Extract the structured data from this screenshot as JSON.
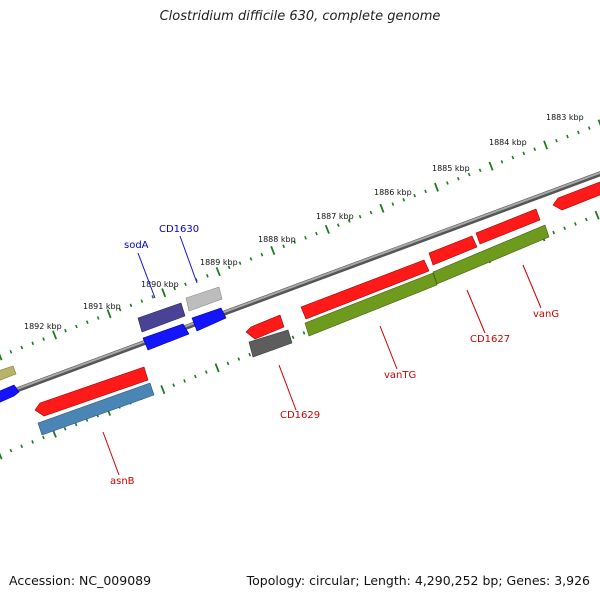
{
  "title": "Clostridium difficile 630, complete genome",
  "footer": {
    "accession": "Accession: NC_009089",
    "summary": "Topology: circular; Length: 4,290,252 bp; Genes: 3,926"
  },
  "colors": {
    "backbone": "#8c8c8c",
    "tick": "#1e7a1e",
    "gene_label_red": "#cc0000",
    "gene_label_blue": "#0000cc",
    "red": "#ff1a1a",
    "blue": "#1414ff",
    "navy": "#4a4295",
    "olive_green": "#6e9a1e",
    "steel_blue": "#4a85b5",
    "gray": "#bdbdbd",
    "dark_gray": "#5d5d5d",
    "khaki": "#b9b36a"
  },
  "kbp_labels": [
    "1883 kbp",
    "1884 kbp",
    "1885 kbp",
    "1886 kbp",
    "1887 kbp",
    "1888 kbp",
    "1889 kbp",
    "1890 kbp",
    "1891 kbp",
    "1892 kbp"
  ],
  "gene_labels": [
    {
      "text": "sodA",
      "color": "blue"
    },
    {
      "text": "CD1630",
      "color": "blue"
    },
    {
      "text": "CD1629",
      "color": "red"
    },
    {
      "text": "vanTG",
      "color": "red"
    },
    {
      "text": "CD1627",
      "color": "red"
    },
    {
      "text": "vanG",
      "color": "red"
    },
    {
      "text": "asnB",
      "color": "red"
    }
  ]
}
